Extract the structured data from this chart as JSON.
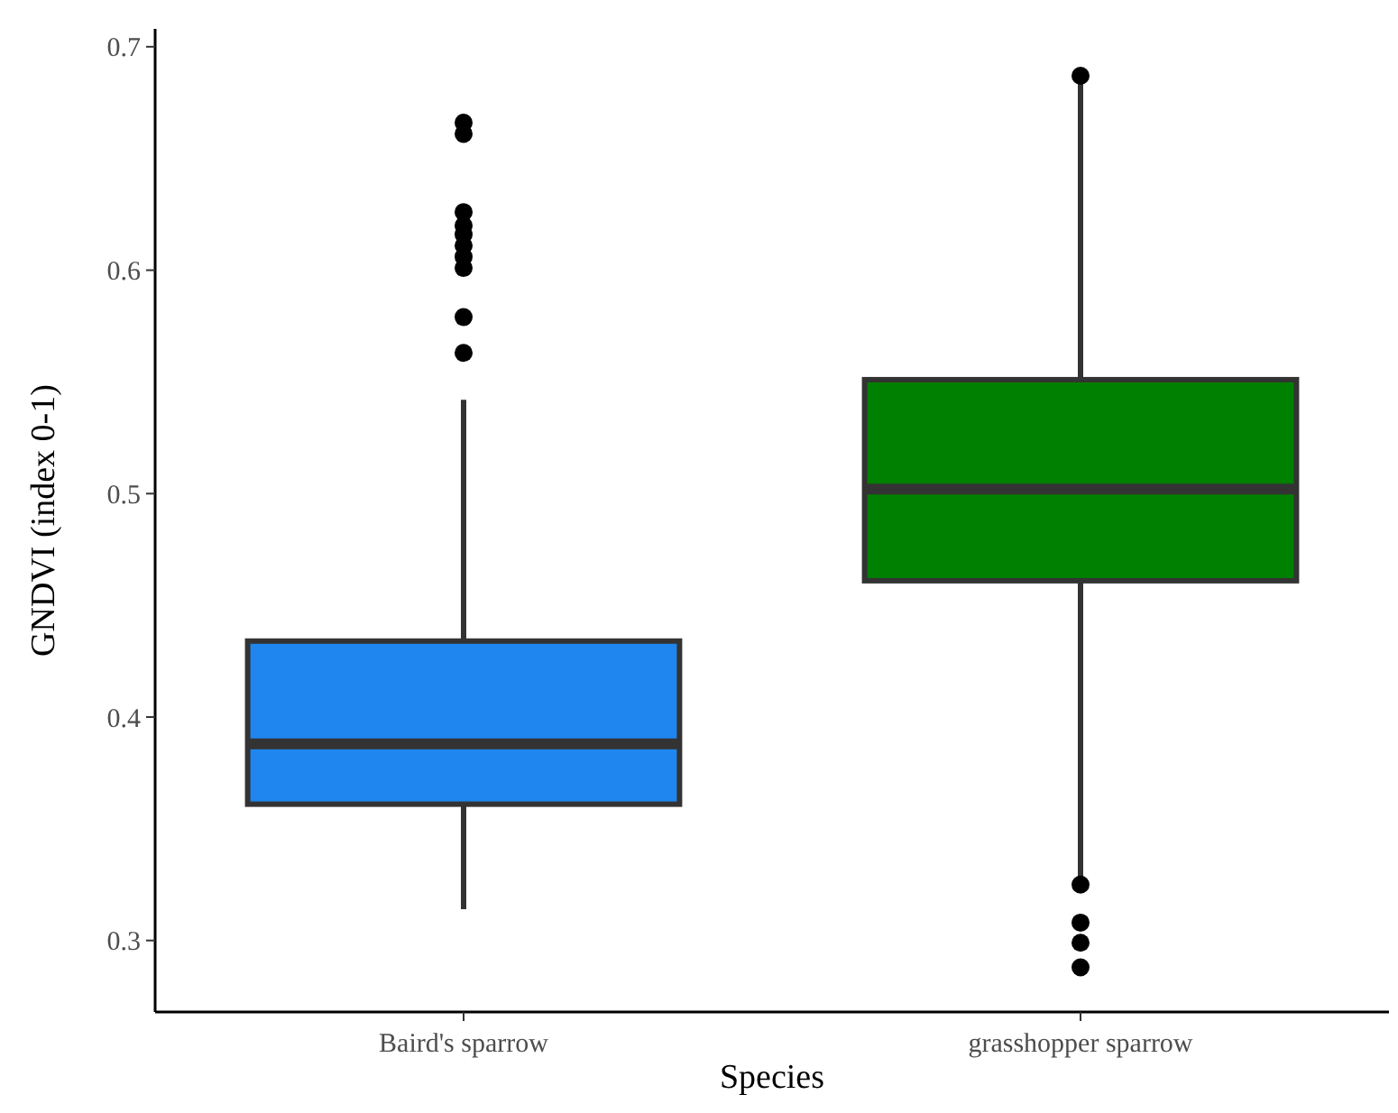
{
  "chart_data": {
    "type": "box",
    "xlabel": "Species",
    "ylabel": "GNDVI (index 0-1)",
    "categories": [
      "Baird's sparrow",
      "grasshopper sparrow"
    ],
    "colors": [
      "#1e86ee",
      "#008000"
    ],
    "boxes": [
      {
        "low": 0.314,
        "q1": 0.361,
        "median": 0.388,
        "q3": 0.434,
        "high": 0.542,
        "outliers": [
          0.666,
          0.661,
          0.626,
          0.62,
          0.616,
          0.611,
          0.606,
          0.601,
          0.579,
          0.563
        ]
      },
      {
        "low": 0.327,
        "q1": 0.461,
        "median": 0.502,
        "q3": 0.551,
        "high": 0.685,
        "outliers": [
          0.687,
          0.325,
          0.308,
          0.299,
          0.288
        ]
      }
    ],
    "ylim": [
      0.268,
      0.708
    ],
    "yticks": [
      0.3,
      0.4,
      0.5,
      0.6,
      0.7
    ],
    "grid": false
  }
}
